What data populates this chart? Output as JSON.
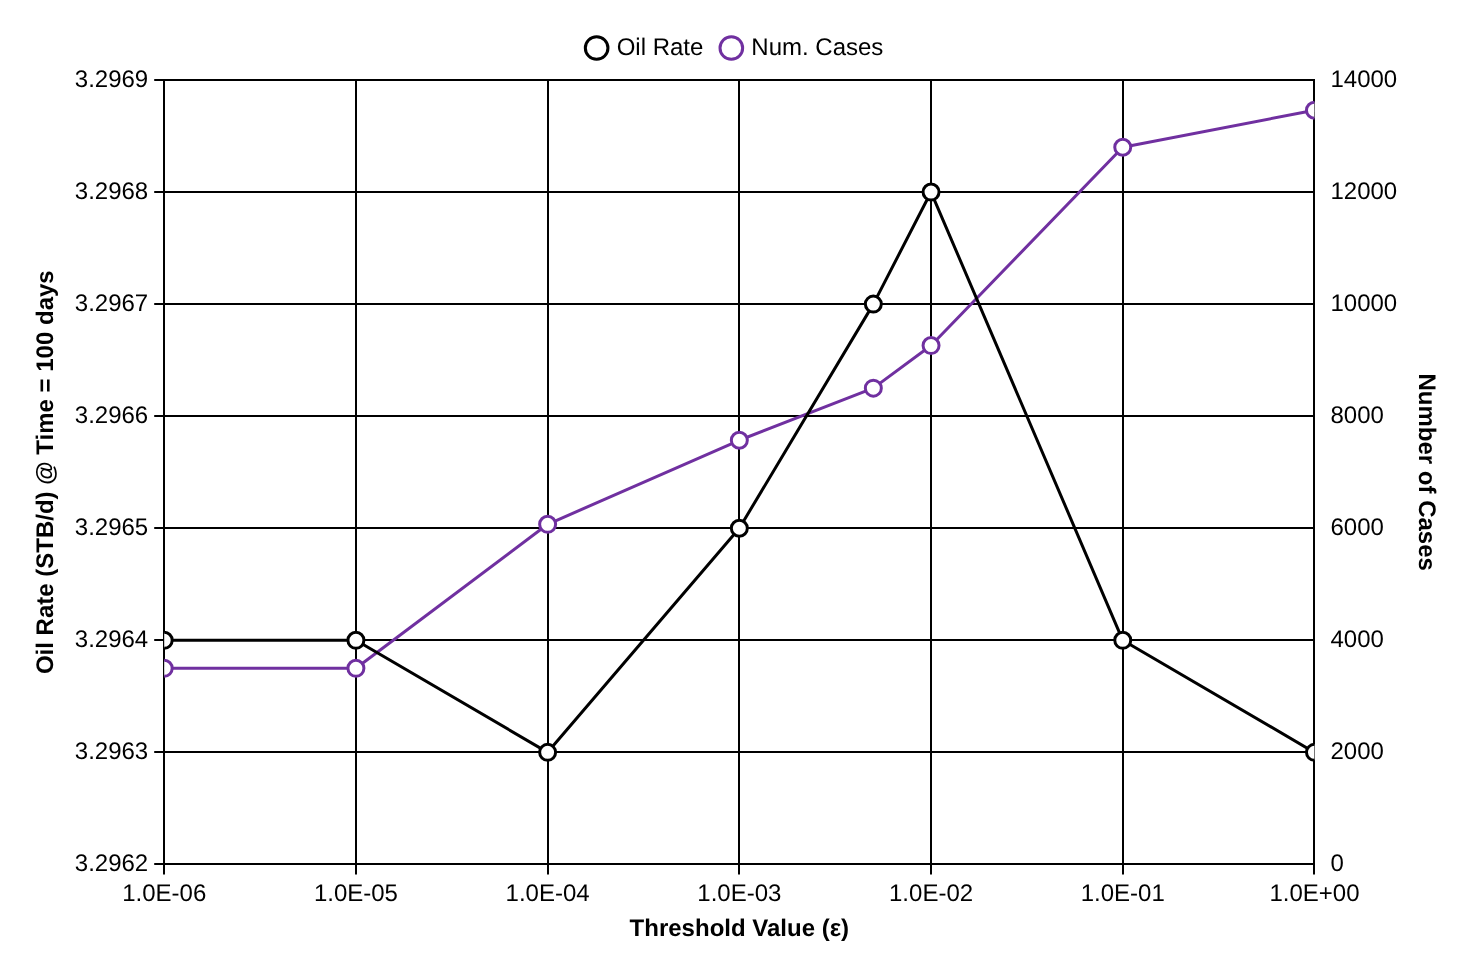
{
  "chart_data": {
    "type": "line",
    "xlabel": "Threshold Value (ε)",
    "ylabel": "Oil Rate (STB/d) @ Time = 100 days",
    "y2label": "Number of Cases",
    "x": [
      1e-06,
      1e-05,
      0.0001,
      0.001,
      0.005,
      0.01,
      0.1,
      1
    ],
    "series": [
      {
        "name": "Oil Rate",
        "color": "#000000",
        "values": [
          3.2964,
          3.2964,
          3.2963,
          3.2965,
          3.2967,
          3.2968,
          3.2964,
          3.2963
        ]
      },
      {
        "name": "Num. Cases",
        "color": "#7030a0",
        "axis": "y2",
        "values": [
          3500,
          3500,
          6070,
          7570,
          8500,
          9260,
          12800,
          13460
        ]
      }
    ],
    "log": "x",
    "xlim": [
      1e-06,
      1
    ],
    "xticks": [
      {
        "value": 1e-06,
        "label": "1.0E-06"
      },
      {
        "value": 1e-05,
        "label": "1.0E-05"
      },
      {
        "value": 0.0001,
        "label": "1.0E-04"
      },
      {
        "value": 0.001,
        "label": "1.0E-03"
      },
      {
        "value": 0.01,
        "label": "1.0E-02"
      },
      {
        "value": 0.1,
        "label": "1.0E-01"
      },
      {
        "value": 1,
        "label": "1.0E+00"
      }
    ],
    "ylim": [
      3.2962,
      3.2969
    ],
    "yticks": [
      3.2962,
      3.2963,
      3.2964,
      3.2965,
      3.2966,
      3.2967,
      3.2968,
      3.2969
    ],
    "y2lim": [
      0,
      14000
    ],
    "y2ticks": [
      0,
      2000,
      4000,
      6000,
      8000,
      10000,
      12000,
      14000
    ],
    "grid": true,
    "legend": "top",
    "marker": "circle",
    "line_style": "solid"
  }
}
